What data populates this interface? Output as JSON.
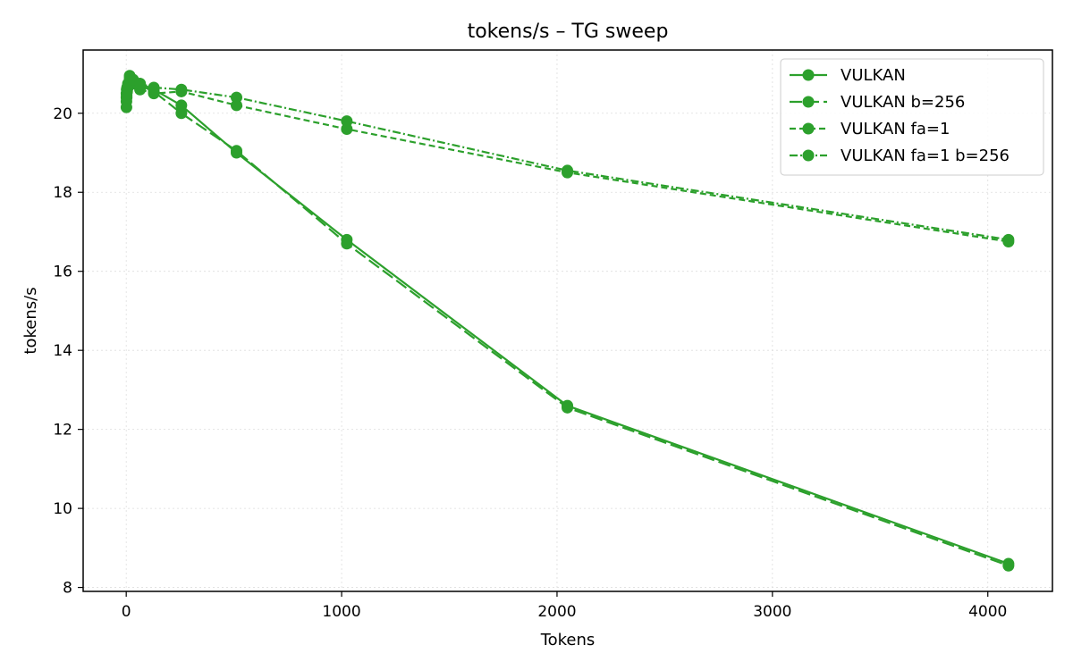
{
  "chart_data": {
    "type": "line",
    "title": "tokens/s – TG sweep",
    "xlabel": "Tokens",
    "ylabel": "tokens/s",
    "xlim": [
      -200,
      4300
    ],
    "ylim": [
      7.9,
      21.6
    ],
    "xticks": [
      0,
      1000,
      2000,
      3000,
      4000
    ],
    "yticks": [
      8,
      10,
      12,
      14,
      16,
      18,
      20
    ],
    "xtick_labels": [
      "0",
      "1000",
      "2000",
      "3000",
      "4000"
    ],
    "ytick_labels": [
      "8",
      "10",
      "12",
      "14",
      "16",
      "18",
      "20"
    ],
    "grid": true,
    "legend_position": "upper right",
    "color": "#2ca02c",
    "x": [
      1,
      2,
      4,
      8,
      16,
      32,
      64,
      128,
      256,
      512,
      1024,
      2048,
      4096
    ],
    "series": [
      {
        "name": "VULKAN",
        "linestyle": "solid",
        "values": [
          20.4,
          20.5,
          20.6,
          20.7,
          20.9,
          20.85,
          20.75,
          20.6,
          20.2,
          19.0,
          16.8,
          12.6,
          8.6
        ]
      },
      {
        "name": "VULKAN b=256",
        "linestyle": "longdash",
        "values": [
          20.3,
          20.45,
          20.6,
          20.7,
          20.85,
          20.8,
          20.7,
          20.55,
          20.0,
          19.05,
          16.7,
          12.55,
          8.55
        ]
      },
      {
        "name": "VULKAN fa=1",
        "linestyle": "dashed",
        "values": [
          20.15,
          20.4,
          20.55,
          20.65,
          20.8,
          20.75,
          20.6,
          20.5,
          20.55,
          20.2,
          19.6,
          18.5,
          16.75
        ]
      },
      {
        "name": "VULKAN fa=1 b=256",
        "linestyle": "dashdot",
        "values": [
          20.5,
          20.6,
          20.65,
          20.75,
          20.95,
          20.85,
          20.75,
          20.65,
          20.6,
          20.4,
          19.8,
          18.55,
          16.8
        ]
      }
    ]
  }
}
